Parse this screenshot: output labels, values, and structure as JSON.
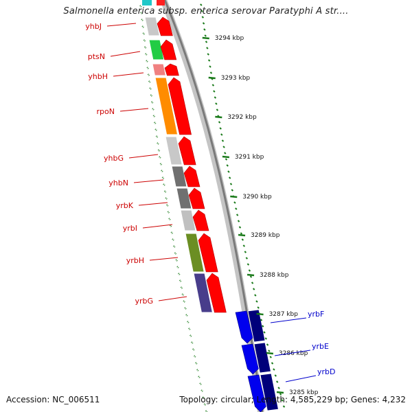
{
  "title": "Salmonella enterica subsp. enterica serovar Paratyphi A str....",
  "footer": {
    "accession": "Accession: NC_006511",
    "summary": "Topology: circular; Length: 4,585,229 bp; Genes: 4,232"
  },
  "colors": {
    "backbone": "#8c8c8c",
    "forward_cds": "#ff0000",
    "reverse_cds": "#0000ee",
    "reverse_cds_dark": "#00007a",
    "tick": "#1a7a1a",
    "forward_label": "#cc0000",
    "reverse_label": "#0000cc"
  },
  "scale_labels": [
    {
      "text": "3294 kbp",
      "kbp": 3294
    },
    {
      "text": "3293 kbp",
      "kbp": 3293
    },
    {
      "text": "3292 kbp",
      "kbp": 3292
    },
    {
      "text": "3291 kbp",
      "kbp": 3291
    },
    {
      "text": "3290 kbp",
      "kbp": 3290
    },
    {
      "text": "3289 kbp",
      "kbp": 3289
    },
    {
      "text": "3288 kbp",
      "kbp": 3288
    },
    {
      "text": "3287 kbp",
      "kbp": 3287
    },
    {
      "text": "3286 kbp",
      "kbp": 3286
    },
    {
      "text": "3285 kbp",
      "kbp": 3285
    }
  ],
  "forward_genes": [
    {
      "name": "yhbJ",
      "cog_color": "#c8c8c8"
    },
    {
      "name": "ptsN",
      "cog_color": "#22cc44"
    },
    {
      "name": "yhbH",
      "cog_color": "#f08080"
    },
    {
      "name": "rpoN",
      "cog_color": "#ff8c00"
    },
    {
      "name": "yhbG",
      "cog_color": "#c8c8c8"
    },
    {
      "name": "yhbN",
      "cog_color": "#707070"
    },
    {
      "name": "yrbK",
      "cog_color": "#707070"
    },
    {
      "name": "yrbI",
      "cog_color": "#c0c0c0"
    },
    {
      "name": "yrbH",
      "cog_color": "#6b8e23"
    },
    {
      "name": "yrbG",
      "cog_color": "#483d8b"
    }
  ],
  "reverse_genes": [
    {
      "name": "yrbF"
    },
    {
      "name": "yrbE"
    },
    {
      "name": "yrbD"
    }
  ]
}
